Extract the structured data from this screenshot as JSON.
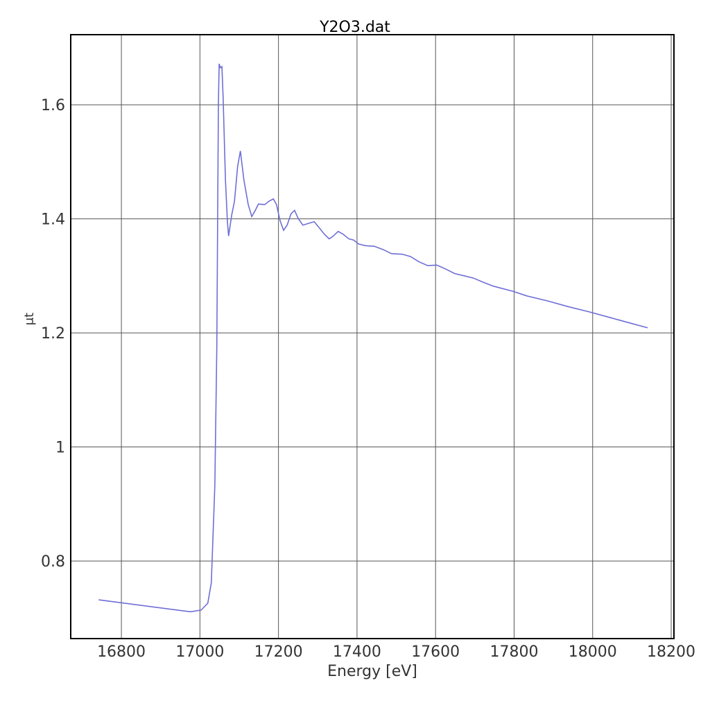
{
  "chart_data": {
    "type": "line",
    "title": "Y2O3.dat",
    "x_label": "Energy [eV]",
    "y_label": "μt",
    "x": [
      16742,
      16976,
      17003,
      17020,
      17029,
      17038,
      17043,
      17047,
      17049,
      17052,
      17056,
      17059,
      17065,
      17070,
      17073,
      17081,
      17088,
      17096,
      17103,
      17112,
      17123,
      17132,
      17141,
      17149,
      17165,
      17176,
      17187,
      17195,
      17204,
      17213,
      17222,
      17232,
      17241,
      17250,
      17262,
      17276,
      17291,
      17303,
      17317,
      17329,
      17338,
      17352,
      17365,
      17379,
      17391,
      17404,
      17421,
      17444,
      17467,
      17488,
      17515,
      17536,
      17557,
      17580,
      17603,
      17626,
      17649,
      17674,
      17697,
      17721,
      17747,
      17797,
      17832,
      17886,
      17938,
      17991,
      18044,
      18097,
      18140
    ],
    "series": [
      {
        "name": "Y2O3.dat",
        "color": "#6e6ed6",
        "values": [
          0.732,
          0.711,
          0.714,
          0.726,
          0.762,
          0.933,
          1.176,
          1.601,
          1.672,
          1.665,
          1.667,
          1.614,
          1.468,
          1.395,
          1.37,
          1.407,
          1.431,
          1.492,
          1.519,
          1.468,
          1.425,
          1.404,
          1.415,
          1.426,
          1.425,
          1.431,
          1.435,
          1.425,
          1.397,
          1.38,
          1.389,
          1.409,
          1.415,
          1.401,
          1.389,
          1.392,
          1.395,
          1.385,
          1.373,
          1.365,
          1.369,
          1.378,
          1.373,
          1.365,
          1.363,
          1.356,
          1.353,
          1.352,
          1.346,
          1.339,
          1.338,
          1.334,
          1.325,
          1.318,
          1.319,
          1.312,
          1.304,
          1.3,
          1.296,
          1.289,
          1.282,
          1.273,
          1.265,
          1.256,
          1.246,
          1.237,
          1.227,
          1.217,
          1.209
        ]
      }
    ],
    "xlim": [
      16671,
      18207
    ],
    "ylim": [
      0.664,
      1.723
    ],
    "xticks": [
      16800,
      17000,
      17200,
      17400,
      17600,
      17800,
      18000,
      18200
    ],
    "yticks": [
      0.8,
      1,
      1.2,
      1.4,
      1.6
    ],
    "grid": true
  }
}
